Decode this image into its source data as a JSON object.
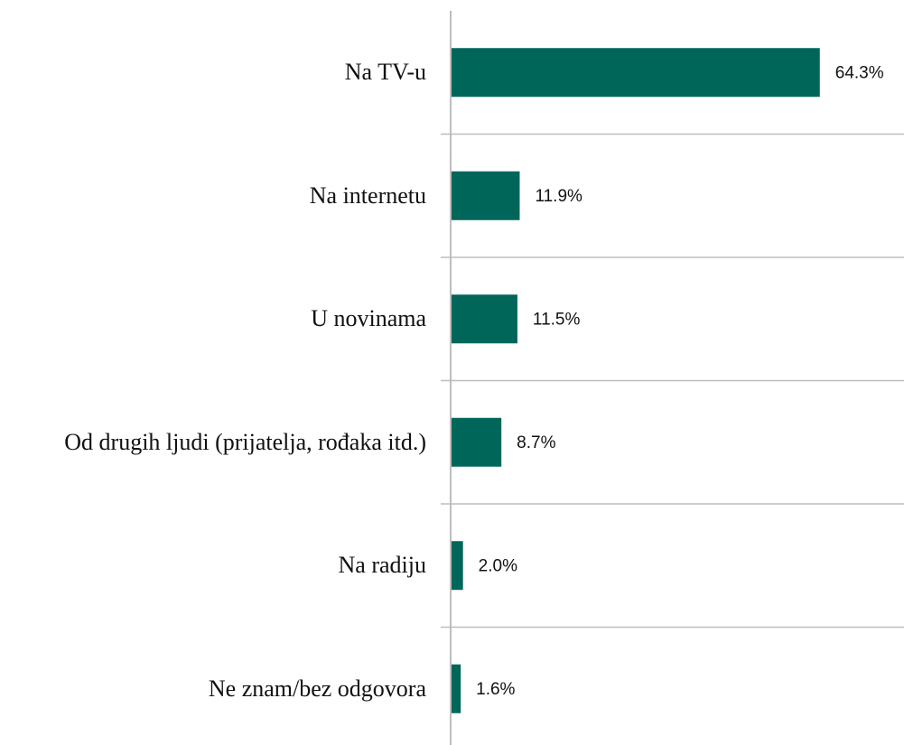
{
  "chart_data": {
    "type": "bar",
    "orientation": "horizontal",
    "categories": [
      "Na TV-u",
      "Na internetu",
      "U novinama",
      "Od drugih ljudi (prijatelja, rođaka itd.)",
      "Na radiju",
      "Ne znam/bez odgovora"
    ],
    "values": [
      64.3,
      11.9,
      11.5,
      8.7,
      2.0,
      1.6
    ],
    "value_labels": [
      "64.3%",
      "11.9%",
      "11.5%",
      "8.7%",
      "2.0%",
      "1.6%"
    ],
    "color": "#00665a",
    "xlim": [
      0,
      79
    ]
  }
}
